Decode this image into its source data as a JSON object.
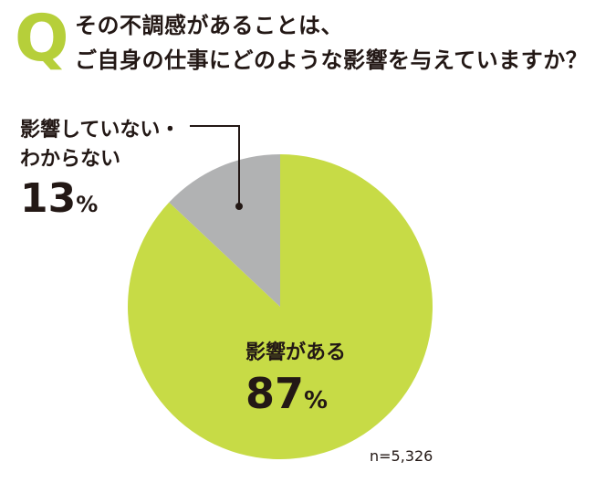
{
  "question": {
    "mark": "Q",
    "line1": "その不調感があることは、",
    "line2": "ご自身の仕事にどのような影響を与えていますか？"
  },
  "chart_data": {
    "type": "pie",
    "slices": [
      {
        "label": "影響がある",
        "value": 87,
        "display": "87",
        "color": "#c7db46"
      },
      {
        "label_line1": "影響していない・",
        "label_line2": "わからない",
        "value": 13,
        "display": "13",
        "color": "#b1b2b3"
      }
    ],
    "unit": "%",
    "sample_size": "n=5,326"
  },
  "colors": {
    "accent": "#b6cf3a",
    "text": "#231815",
    "leader": "#231815"
  }
}
